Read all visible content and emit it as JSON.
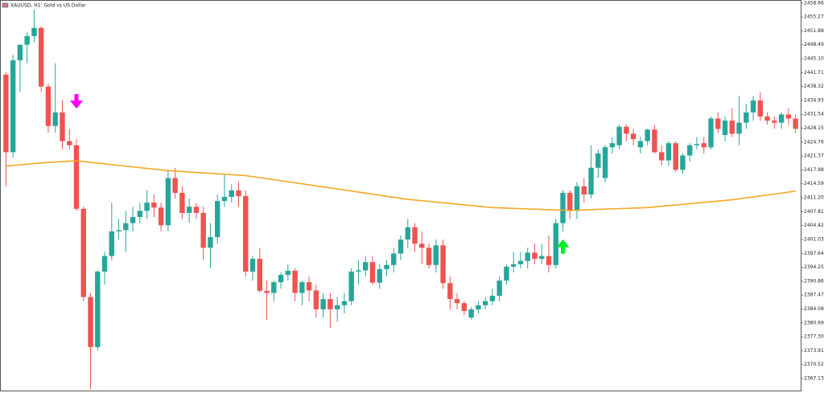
{
  "chart_data": {
    "type": "candlestick",
    "title": "XAUUSD, H1:  Gold vs US Dollar",
    "up_color": "#26a69a",
    "down_color": "#ef5350",
    "ylim": [
      2364.0,
      2459.4
    ],
    "yticks": [
      2458.66,
      2455.27,
      2451.88,
      2448.49,
      {
        "value": 2445.1,
        "label": "2445.10"
      },
      2441.71,
      2438.32,
      2434.93,
      2431.54,
      2428.15,
      2424.76,
      2421.37,
      2417.98,
      2414.59,
      {
        "value": 2411.2,
        "label": "2411.20"
      },
      2407.81,
      2404.42,
      2401.03,
      2397.64,
      2394.25,
      2390.86,
      2387.47,
      2384.08,
      2380.69,
      {
        "value": 2377.3,
        "label": "2377.30"
      },
      2373.91,
      2370.52,
      2367.13
    ],
    "candles": [
      {
        "o": 2441.2,
        "h": 2441.8,
        "l": 2414.0,
        "c": 2422.3
      },
      {
        "o": 2422.3,
        "h": 2446,
        "l": 2421,
        "c": 2444.7
      },
      {
        "o": 2444.7,
        "h": 2448,
        "l": 2437,
        "c": 2448.5
      },
      {
        "o": 2448.5,
        "h": 2451.5,
        "l": 2444,
        "c": 2450.6
      },
      {
        "o": 2450.6,
        "h": 2457,
        "l": 2449,
        "c": 2452.6
      },
      {
        "o": 2452.6,
        "h": 2453,
        "l": 2437,
        "c": 2438.3
      },
      {
        "o": 2438.3,
        "h": 2439,
        "l": 2427,
        "c": 2428.7
      },
      {
        "o": 2428.7,
        "h": 2444,
        "l": 2427,
        "c": 2432
      },
      {
        "o": 2432,
        "h": 2435,
        "l": 2423,
        "c": 2425
      },
      {
        "o": 2425,
        "h": 2428,
        "l": 2423,
        "c": 2424
      },
      {
        "o": 2424,
        "h": 2425.5,
        "l": 2408,
        "c": 2408.5
      },
      {
        "o": 2408.5,
        "h": 2409,
        "l": 2386,
        "c": 2387
      },
      {
        "o": 2387,
        "h": 2388,
        "l": 2364.5,
        "c": 2374.8
      },
      {
        "o": 2374.8,
        "h": 2393.5,
        "l": 2374,
        "c": 2393.2
      },
      {
        "o": 2393.2,
        "h": 2398,
        "l": 2390,
        "c": 2397
      },
      {
        "o": 2397,
        "h": 2410,
        "l": 2396,
        "c": 2403
      },
      {
        "o": 2403,
        "h": 2406,
        "l": 2401,
        "c": 2403.3
      },
      {
        "o": 2403.3,
        "h": 2408,
        "l": 2398,
        "c": 2405
      },
      {
        "o": 2405,
        "h": 2409,
        "l": 2403,
        "c": 2406.5
      },
      {
        "o": 2406.5,
        "h": 2410,
        "l": 2405,
        "c": 2408
      },
      {
        "o": 2408,
        "h": 2413,
        "l": 2406,
        "c": 2410
      },
      {
        "o": 2410,
        "h": 2412,
        "l": 2406.5,
        "c": 2408.8
      },
      {
        "o": 2408.8,
        "h": 2410,
        "l": 2403,
        "c": 2404.5
      },
      {
        "o": 2404.5,
        "h": 2418,
        "l": 2403,
        "c": 2416
      },
      {
        "o": 2416,
        "h": 2418.5,
        "l": 2411,
        "c": 2412.4
      },
      {
        "o": 2412.4,
        "h": 2414,
        "l": 2406,
        "c": 2407.5
      },
      {
        "o": 2407.5,
        "h": 2411,
        "l": 2405,
        "c": 2409
      },
      {
        "o": 2409,
        "h": 2410,
        "l": 2406,
        "c": 2407.5
      },
      {
        "o": 2407.5,
        "h": 2409,
        "l": 2396,
        "c": 2399
      },
      {
        "o": 2399,
        "h": 2405,
        "l": 2394,
        "c": 2401.6
      },
      {
        "o": 2401.6,
        "h": 2412,
        "l": 2400,
        "c": 2410.4
      },
      {
        "o": 2410.4,
        "h": 2417,
        "l": 2409,
        "c": 2411.4
      },
      {
        "o": 2411.4,
        "h": 2414.5,
        "l": 2410,
        "c": 2413
      },
      {
        "o": 2413,
        "h": 2415,
        "l": 2409,
        "c": 2411.6
      },
      {
        "o": 2411.6,
        "h": 2413,
        "l": 2392,
        "c": 2393.2
      },
      {
        "o": 2393.2,
        "h": 2397,
        "l": 2391,
        "c": 2396.3
      },
      {
        "o": 2396.3,
        "h": 2399,
        "l": 2388,
        "c": 2388.5
      },
      {
        "o": 2388.5,
        "h": 2391,
        "l": 2381.5,
        "c": 2388
      },
      {
        "o": 2388,
        "h": 2391,
        "l": 2386,
        "c": 2390.6
      },
      {
        "o": 2390.6,
        "h": 2393,
        "l": 2389,
        "c": 2392.4
      },
      {
        "o": 2392.4,
        "h": 2395,
        "l": 2391,
        "c": 2393.4
      },
      {
        "o": 2393.4,
        "h": 2394,
        "l": 2386,
        "c": 2388
      },
      {
        "o": 2388,
        "h": 2391,
        "l": 2385,
        "c": 2390.6
      },
      {
        "o": 2390.6,
        "h": 2392,
        "l": 2386,
        "c": 2388.6
      },
      {
        "o": 2388.6,
        "h": 2390,
        "l": 2382,
        "c": 2384
      },
      {
        "o": 2384,
        "h": 2388,
        "l": 2382,
        "c": 2386.5
      },
      {
        "o": 2386.5,
        "h": 2388,
        "l": 2379.5,
        "c": 2384
      },
      {
        "o": 2384,
        "h": 2387,
        "l": 2381,
        "c": 2385
      },
      {
        "o": 2385,
        "h": 2388,
        "l": 2383,
        "c": 2386
      },
      {
        "o": 2386,
        "h": 2394,
        "l": 2385,
        "c": 2393.2
      },
      {
        "o": 2393.2,
        "h": 2396,
        "l": 2390,
        "c": 2393.5
      },
      {
        "o": 2393.5,
        "h": 2397,
        "l": 2392,
        "c": 2395.5
      },
      {
        "o": 2395.5,
        "h": 2397,
        "l": 2390,
        "c": 2390.5
      },
      {
        "o": 2390.5,
        "h": 2395,
        "l": 2389,
        "c": 2393.8
      },
      {
        "o": 2393.8,
        "h": 2396,
        "l": 2392,
        "c": 2394.8
      },
      {
        "o": 2394.8,
        "h": 2399,
        "l": 2393,
        "c": 2397.6
      },
      {
        "o": 2397.6,
        "h": 2402,
        "l": 2396,
        "c": 2401
      },
      {
        "o": 2401,
        "h": 2406,
        "l": 2399,
        "c": 2404
      },
      {
        "o": 2404,
        "h": 2405,
        "l": 2398,
        "c": 2400
      },
      {
        "o": 2400,
        "h": 2403,
        "l": 2395,
        "c": 2399
      },
      {
        "o": 2399,
        "h": 2400,
        "l": 2394,
        "c": 2394.8
      },
      {
        "o": 2394.8,
        "h": 2401,
        "l": 2393,
        "c": 2399.6
      },
      {
        "o": 2399.6,
        "h": 2401,
        "l": 2389,
        "c": 2390.4
      },
      {
        "o": 2390.4,
        "h": 2392,
        "l": 2384,
        "c": 2386.5
      },
      {
        "o": 2386.5,
        "h": 2388,
        "l": 2384,
        "c": 2385.5
      },
      {
        "o": 2385.5,
        "h": 2386,
        "l": 2382.5,
        "c": 2383.6
      },
      {
        "o": 2382,
        "h": 2384.5,
        "l": 2381.5,
        "c": 2384
      },
      {
        "o": 2384,
        "h": 2386,
        "l": 2383,
        "c": 2385
      },
      {
        "o": 2385,
        "h": 2387,
        "l": 2384,
        "c": 2386
      },
      {
        "o": 2386,
        "h": 2389,
        "l": 2385,
        "c": 2387.3
      },
      {
        "o": 2387.3,
        "h": 2392,
        "l": 2386,
        "c": 2391
      },
      {
        "o": 2391,
        "h": 2395,
        "l": 2390,
        "c": 2394.4
      },
      {
        "o": 2394.4,
        "h": 2398,
        "l": 2393,
        "c": 2395
      },
      {
        "o": 2395,
        "h": 2398,
        "l": 2394,
        "c": 2395.8
      },
      {
        "o": 2395.8,
        "h": 2399,
        "l": 2394,
        "c": 2397.8
      },
      {
        "o": 2397.8,
        "h": 2400,
        "l": 2395,
        "c": 2396.3
      },
      {
        "o": 2396.3,
        "h": 2400,
        "l": 2395,
        "c": 2397
      },
      {
        "o": 2397,
        "h": 2402,
        "l": 2393,
        "c": 2394.8
      },
      {
        "o": 2394.8,
        "h": 2406,
        "l": 2394,
        "c": 2405
      },
      {
        "o": 2405,
        "h": 2413,
        "l": 2403,
        "c": 2412.4
      },
      {
        "o": 2412.4,
        "h": 2413,
        "l": 2406,
        "c": 2408
      },
      {
        "o": 2408,
        "h": 2415,
        "l": 2406,
        "c": 2414
      },
      {
        "o": 2414,
        "h": 2416,
        "l": 2410,
        "c": 2412
      },
      {
        "o": 2412,
        "h": 2424,
        "l": 2411,
        "c": 2418.5
      },
      {
        "o": 2418.5,
        "h": 2423,
        "l": 2416,
        "c": 2422
      },
      {
        "o": 2416,
        "h": 2424,
        "l": 2415,
        "c": 2423.5
      },
      {
        "o": 2423.5,
        "h": 2426,
        "l": 2422,
        "c": 2424.5
      },
      {
        "o": 2424,
        "h": 2429,
        "l": 2423,
        "c": 2428.5
      },
      {
        "o": 2428.5,
        "h": 2429,
        "l": 2425,
        "c": 2426.8
      },
      {
        "o": 2426.8,
        "h": 2428,
        "l": 2424,
        "c": 2425.5
      },
      {
        "o": 2423.5,
        "h": 2426,
        "l": 2422,
        "c": 2425
      },
      {
        "o": 2425,
        "h": 2428,
        "l": 2424,
        "c": 2427.8
      },
      {
        "o": 2427.8,
        "h": 2429,
        "l": 2422,
        "c": 2422.3
      },
      {
        "o": 2422.3,
        "h": 2424,
        "l": 2419,
        "c": 2420.3
      },
      {
        "o": 2420.3,
        "h": 2425,
        "l": 2419,
        "c": 2424.5
      },
      {
        "o": 2424.5,
        "h": 2425,
        "l": 2417.5,
        "c": 2418
      },
      {
        "o": 2418,
        "h": 2422,
        "l": 2417,
        "c": 2421.5
      },
      {
        "o": 2421.5,
        "h": 2424.5,
        "l": 2420,
        "c": 2424
      },
      {
        "o": 2424,
        "h": 2426,
        "l": 2423,
        "c": 2424.3
      },
      {
        "o": 2424.5,
        "h": 2426,
        "l": 2422,
        "c": 2423.5
      },
      {
        "o": 2423.5,
        "h": 2431,
        "l": 2423,
        "c": 2430.5
      },
      {
        "o": 2430.5,
        "h": 2432,
        "l": 2427,
        "c": 2428
      },
      {
        "o": 2426.5,
        "h": 2431,
        "l": 2425,
        "c": 2430
      },
      {
        "o": 2430,
        "h": 2433,
        "l": 2426,
        "c": 2426.8
      },
      {
        "o": 2426.8,
        "h": 2436,
        "l": 2424,
        "c": 2429.5
      },
      {
        "o": 2429.5,
        "h": 2434,
        "l": 2428,
        "c": 2432
      },
      {
        "o": 2432,
        "h": 2436,
        "l": 2430,
        "c": 2434.9
      },
      {
        "o": 2434.9,
        "h": 2437,
        "l": 2430,
        "c": 2431
      },
      {
        "o": 2431,
        "h": 2432,
        "l": 2429,
        "c": 2430
      },
      {
        "o": 2430,
        "h": 2431,
        "l": 2428,
        "c": 2429.5
      },
      {
        "o": 2429.5,
        "h": 2432,
        "l": 2428,
        "c": 2431.5
      },
      {
        "o": 2431.5,
        "h": 2433,
        "l": 2429,
        "c": 2430.5
      },
      {
        "o": 2430.5,
        "h": 2431.5,
        "l": 2427,
        "c": 2428
      }
    ],
    "moving_average": {
      "color": "#f5a623",
      "x": [
        0,
        5,
        10,
        23,
        34,
        46,
        57,
        69,
        80,
        91,
        103,
        112
      ],
      "values": [
        2418.9,
        2419.7,
        2420.2,
        2417.8,
        2416.6,
        2413.6,
        2410.8,
        2408.8,
        2408.1,
        2408.8,
        2410.7,
        2412.8
      ]
    },
    "signals": [
      {
        "direction": "down",
        "color": "#ff00ff",
        "index": 10,
        "price": 2434.5
      },
      {
        "direction": "up",
        "color": "#00ee22",
        "index": 79,
        "price": 2399.5
      }
    ]
  }
}
